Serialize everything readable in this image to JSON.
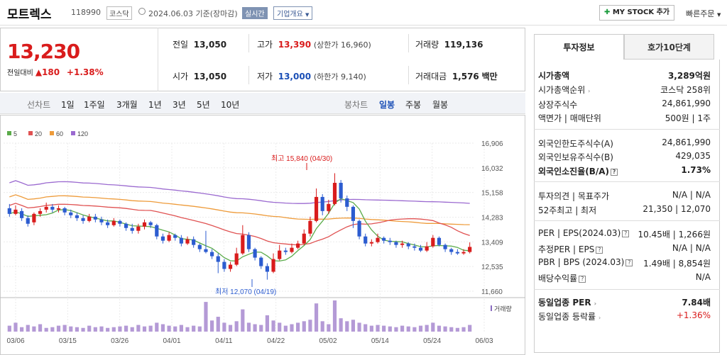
{
  "header": {
    "company": "모트렉스",
    "code": "118990",
    "market": "코스닥",
    "asof": "2024.06.03  기준(장마감)",
    "realtime": "실시간",
    "company_info": "기업개요",
    "mystock": "MY STOCK 추가",
    "quick_order": "빠른주문"
  },
  "price": {
    "current": "13,230",
    "change_label": "전일대비",
    "change": "▲180",
    "change_pct": "+1.38%"
  },
  "quote": {
    "prev_label": "전일",
    "prev": "13,050",
    "high_label": "고가",
    "high": "13,390",
    "upper_limit": "(상한가 16,960)",
    "volume_label": "거래량",
    "volume": "119,136",
    "open_label": "시가",
    "open": "13,050",
    "low_label": "저가",
    "low": "13,000",
    "lower_limit": "(하한가 9,140)",
    "amount_label": "거래대금",
    "amount": "1,576",
    "amount_unit": "백만"
  },
  "periods": {
    "line_label": "선차트",
    "items": [
      "1일",
      "1주일",
      "3개월",
      "1년",
      "3년",
      "5년",
      "10년"
    ],
    "candle_label": "봉차트",
    "candle_items": [
      "일봉",
      "주봉",
      "월봉"
    ]
  },
  "chart_data": {
    "type": "candlestick",
    "legend": [
      "5",
      "20",
      "60",
      "120"
    ],
    "legend_colors": [
      "#5bab4a",
      "#e05252",
      "#ee9b3a",
      "#9b6ad0"
    ],
    "y_ticks": [
      "16,906",
      "16,032",
      "15,158",
      "14,283",
      "13,409",
      "12,535",
      "11,660"
    ],
    "ylim": [
      11660,
      16906
    ],
    "x_ticks": [
      "03/06",
      "03/15",
      "03/26",
      "04/01",
      "04/11",
      "04/22",
      "05/02",
      "05/14",
      "05/24",
      "06/03"
    ],
    "high_annotation": "최고 15,840 (04/30)",
    "low_annotation": "최저 12,070 (04/19)",
    "volume_label": "거래량",
    "candles": [
      [
        14600,
        14400,
        14750,
        14300
      ],
      [
        14400,
        14550,
        14700,
        14350
      ],
      [
        14500,
        14250,
        14600,
        14150
      ],
      [
        14250,
        14050,
        14350,
        13950
      ],
      [
        14100,
        14400,
        14450,
        14000
      ],
      [
        14400,
        14500,
        14600,
        14300
      ],
      [
        14550,
        14650,
        14800,
        14450
      ],
      [
        14650,
        14550,
        14750,
        14450
      ],
      [
        14550,
        14600,
        14700,
        14450
      ],
      [
        14600,
        14450,
        14650,
        14350
      ],
      [
        14450,
        14350,
        14550,
        14250
      ],
      [
        14350,
        14250,
        14450,
        14150
      ],
      [
        14250,
        14150,
        14350,
        14050
      ],
      [
        14150,
        14300,
        14400,
        14100
      ],
      [
        14300,
        14200,
        14400,
        14100
      ],
      [
        14200,
        14100,
        14300,
        14000
      ],
      [
        14100,
        14000,
        14200,
        13900
      ],
      [
        14000,
        14150,
        14250,
        13950
      ],
      [
        14150,
        14050,
        14200,
        13950
      ],
      [
        14050,
        13900,
        14100,
        13800
      ],
      [
        13900,
        13800,
        14050,
        13700
      ],
      [
        13800,
        13950,
        14050,
        13700
      ],
      [
        13950,
        14100,
        14200,
        13850
      ],
      [
        14100,
        14000,
        14150,
        13900
      ],
      [
        14000,
        13600,
        14050,
        13500
      ],
      [
        13600,
        13450,
        13700,
        13350
      ],
      [
        13450,
        13650,
        13750,
        13400
      ],
      [
        13650,
        13550,
        13700,
        13450
      ],
      [
        13550,
        13350,
        13650,
        13250
      ],
      [
        13350,
        13500,
        13600,
        13300
      ],
      [
        13500,
        13300,
        13600,
        13200
      ],
      [
        13300,
        13150,
        13350,
        13050
      ],
      [
        13150,
        13050,
        13800,
        13000
      ],
      [
        13050,
        12900,
        13150,
        12800
      ],
      [
        12900,
        12700,
        13000,
        12300
      ],
      [
        12700,
        12450,
        12800,
        12350
      ],
      [
        12450,
        12600,
        12700,
        12350
      ],
      [
        12600,
        13000,
        13200,
        12550
      ],
      [
        13000,
        13650,
        14000,
        12950
      ],
      [
        13650,
        13150,
        13750,
        13050
      ],
      [
        13150,
        12850,
        13200,
        12750
      ],
      [
        12850,
        12550,
        12900,
        12450
      ],
      [
        12550,
        12350,
        12650,
        12070
      ],
      [
        12350,
        12800,
        13000,
        12300
      ],
      [
        12800,
        13100,
        13300,
        12750
      ],
      [
        13100,
        13050,
        13200,
        12950
      ],
      [
        13050,
        13200,
        13350,
        13000
      ],
      [
        13200,
        13350,
        13450,
        13150
      ],
      [
        13350,
        13700,
        13850,
        13300
      ],
      [
        13700,
        14150,
        14300,
        13600
      ],
      [
        14150,
        15000,
        15300,
        14100
      ],
      [
        15000,
        14500,
        15100,
        14350
      ],
      [
        14500,
        14750,
        14900,
        14400
      ],
      [
        14750,
        15500,
        15840,
        14700
      ],
      [
        15500,
        14950,
        15600,
        14800
      ],
      [
        14950,
        14650,
        15050,
        14500
      ],
      [
        14650,
        14150,
        14700,
        13900
      ],
      [
        14150,
        13600,
        14200,
        13500
      ],
      [
        13600,
        13350,
        13700,
        13250
      ],
      [
        13350,
        13400,
        13500,
        13250
      ],
      [
        13400,
        13550,
        13700,
        13350
      ],
      [
        13550,
        13450,
        13600,
        13350
      ],
      [
        13450,
        13400,
        13550,
        13300
      ],
      [
        13400,
        13300,
        13450,
        13200
      ],
      [
        13300,
        13350,
        13450,
        13200
      ],
      [
        13350,
        13250,
        13400,
        13150
      ],
      [
        13250,
        13200,
        13350,
        13100
      ],
      [
        13200,
        13100,
        13300,
        13050
      ],
      [
        13100,
        13250,
        13400,
        13050
      ],
      [
        13250,
        13550,
        13650,
        13200
      ],
      [
        13550,
        13300,
        13600,
        13250
      ],
      [
        13300,
        13150,
        13350,
        13050
      ],
      [
        13150,
        13050,
        13200,
        12950
      ],
      [
        13050,
        13000,
        13150,
        12950
      ],
      [
        13000,
        13050,
        13150,
        12950
      ],
      [
        13050,
        13230,
        13390,
        13000
      ]
    ],
    "volumes": [
      8,
      12,
      6,
      9,
      7,
      10,
      5,
      6,
      8,
      9,
      7,
      6,
      5,
      8,
      6,
      7,
      5,
      6,
      7,
      8,
      6,
      9,
      7,
      8,
      12,
      10,
      8,
      7,
      9,
      6,
      8,
      7,
      40,
      15,
      20,
      12,
      9,
      14,
      30,
      12,
      10,
      9,
      22,
      15,
      12,
      8,
      10,
      12,
      14,
      16,
      38,
      14,
      10,
      42,
      18,
      14,
      16,
      12,
      10,
      8,
      9,
      8,
      7,
      6,
      8,
      7,
      6,
      8,
      9,
      12,
      8,
      7,
      6,
      5,
      6,
      9
    ]
  },
  "tabs": {
    "invest": "투자정보",
    "hoga": "호가10단계"
  },
  "invest": {
    "mcap_label": "시가총액",
    "mcap": "3,289억원",
    "mcap_rank_label": "시가총액순위",
    "mcap_rank": "코스닥 258위",
    "shares_label": "상장주식수",
    "shares": "24,861,990",
    "par_label": "액면가 | 매매단위",
    "par": "500원 | 1주",
    "foreign_limit_label": "외국인한도주식수(A)",
    "foreign_limit": "24,861,990",
    "foreign_hold_label": "외국인보유주식수(B)",
    "foreign_hold": "429,035",
    "foreign_ratio_label": "외국인소진율(B/A)",
    "foreign_ratio": "1.73%",
    "opinion_label": "투자의견 | 목표주가",
    "opinion": "N/A | N/A",
    "w52_label": "52주최고 | 최저",
    "w52": "21,350 | 12,070",
    "per_label": "PER | EPS(2024.03)",
    "per": "10.45배 | 1,266원",
    "est_per_label": "추정PER | EPS",
    "est_per": "N/A | N/A",
    "pbr_label": "PBR | BPS (2024.03)",
    "pbr": "1.49배 | 8,854원",
    "div_label": "배당수익률",
    "div": "N/A",
    "ind_per_label": "동일업종 PER",
    "ind_per": "7.84배",
    "ind_rate_label": "동일업종 등락률",
    "ind_rate": "+1.36%"
  }
}
